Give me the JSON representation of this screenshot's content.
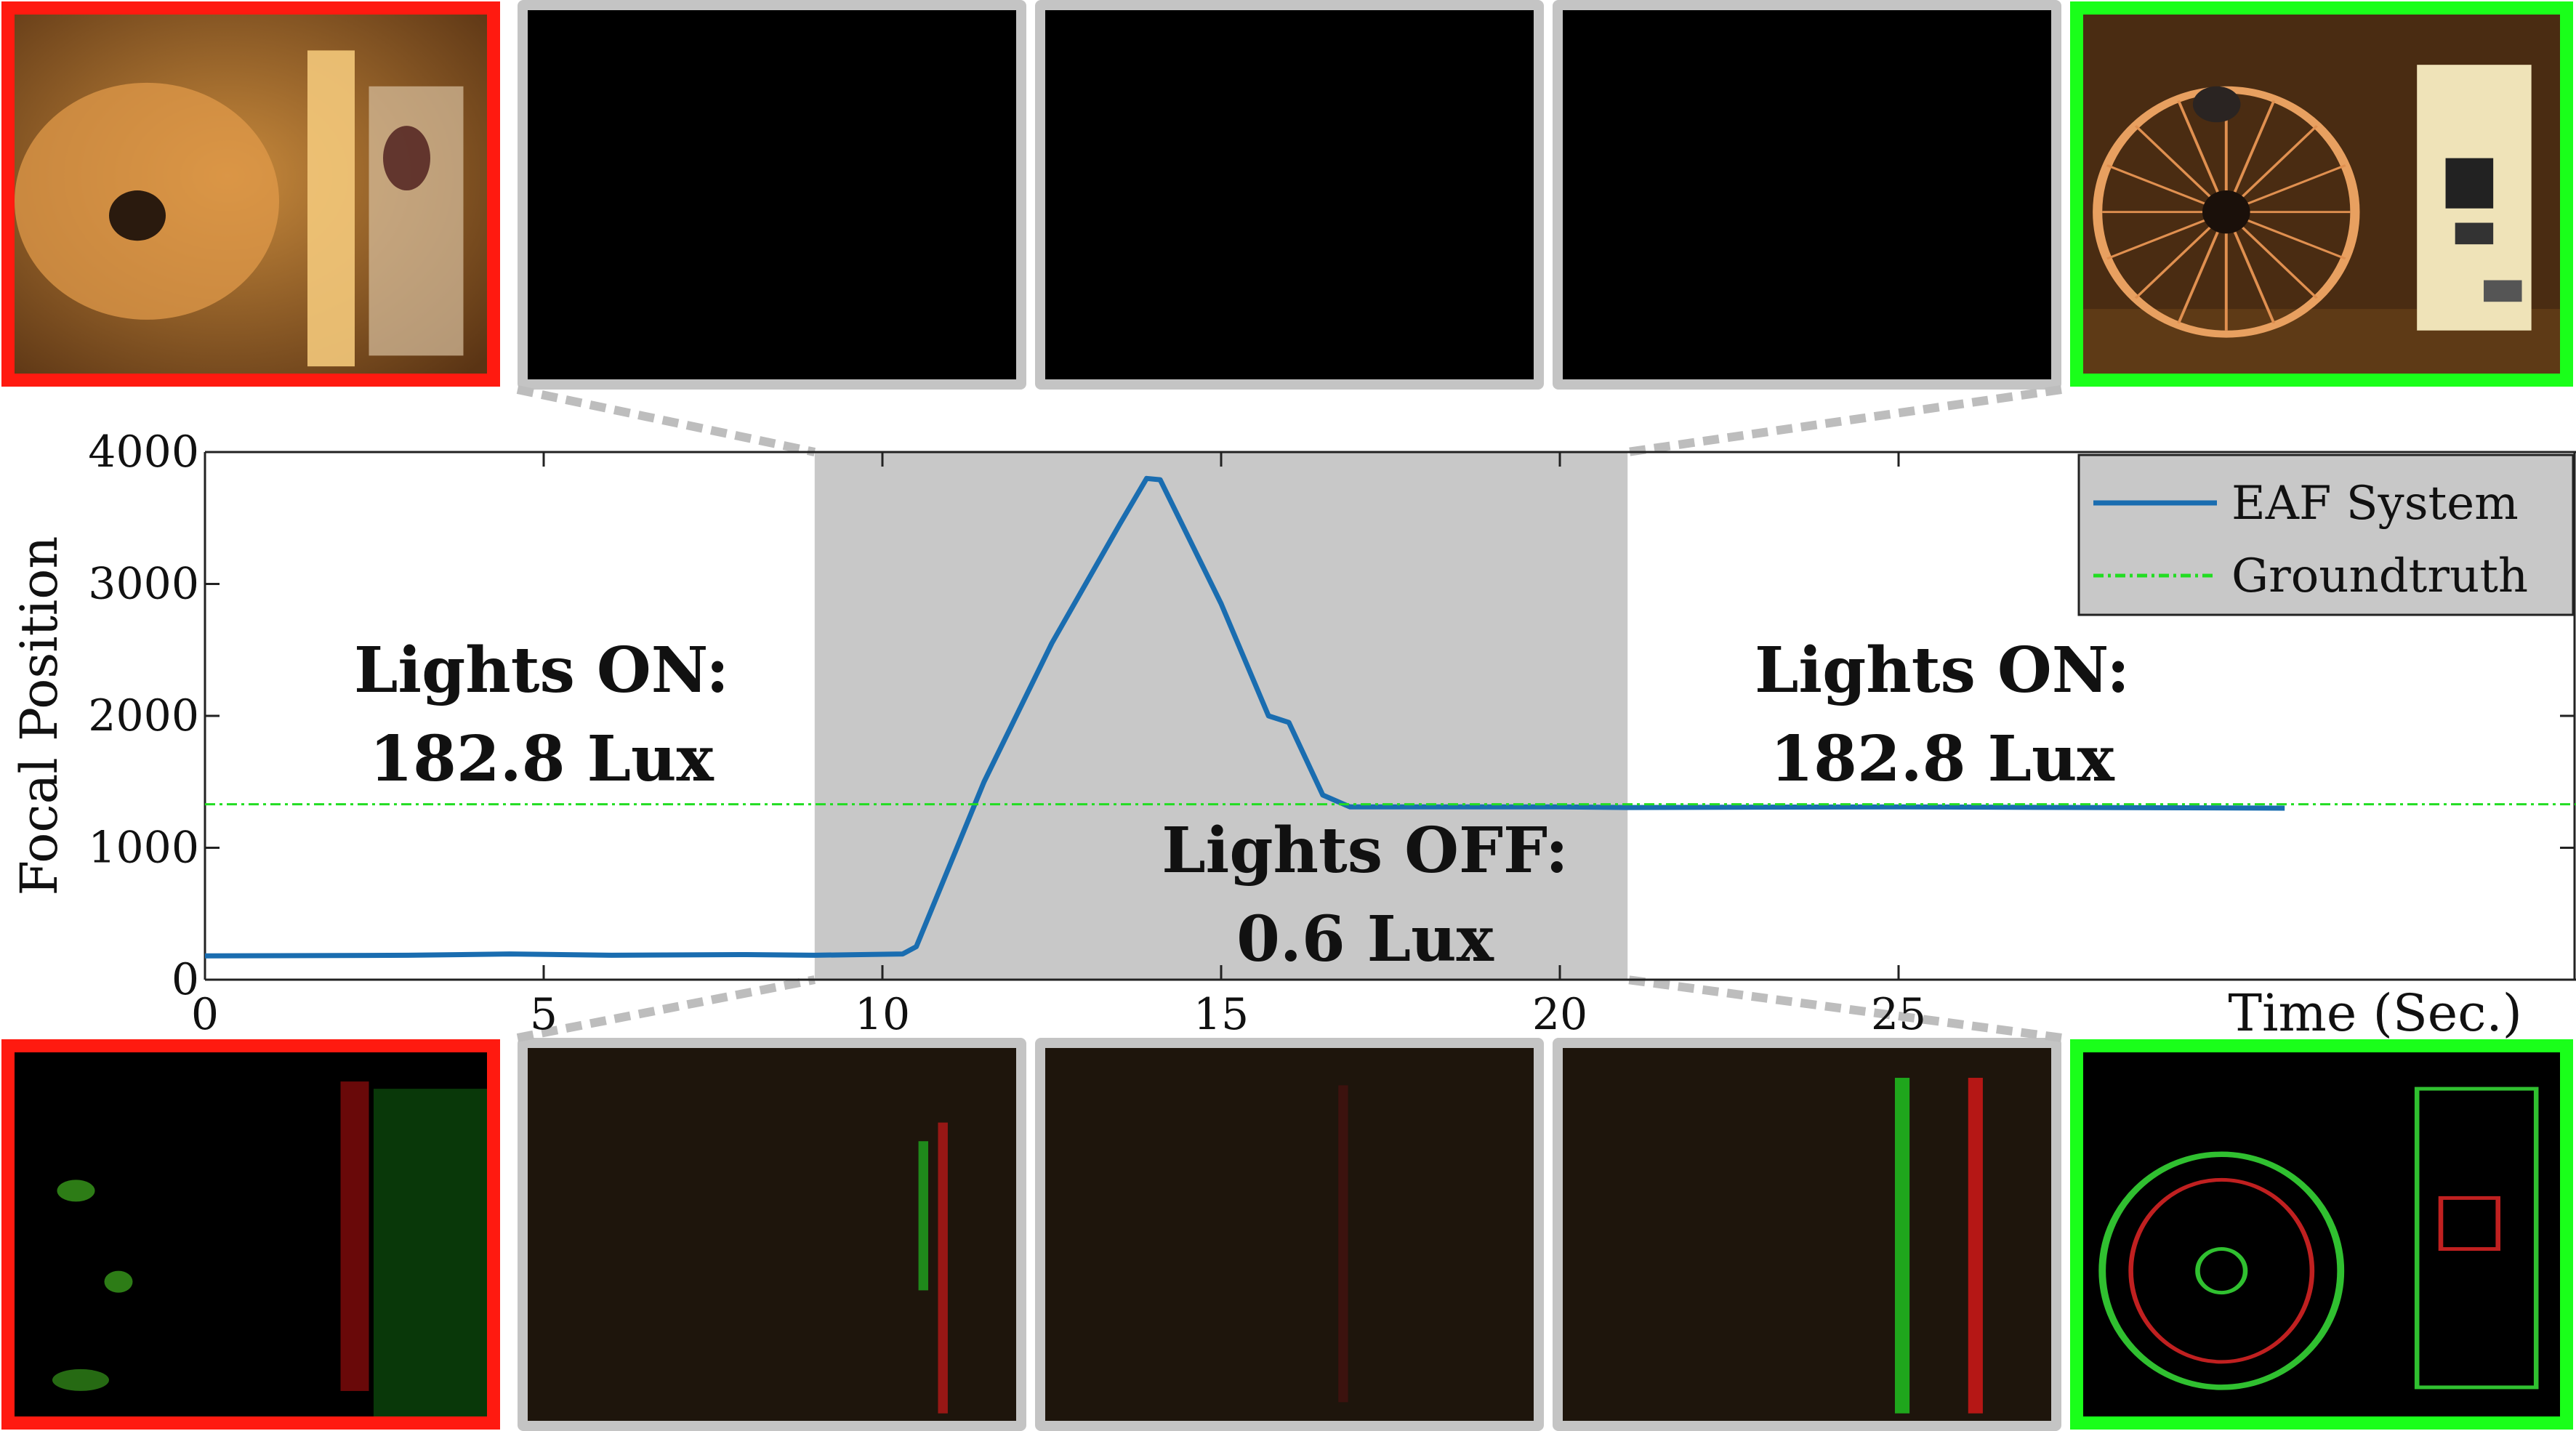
{
  "chart_data": {
    "type": "line",
    "title": "",
    "xlabel": "Time (Sec.)",
    "ylabel": "Focal Position",
    "xlim": [
      0,
      35
    ],
    "ylim": [
      0,
      4000
    ],
    "x_ticks": [
      0,
      5,
      10,
      15,
      20,
      25
    ],
    "y_ticks": [
      0,
      1000,
      2000,
      3000,
      4000
    ],
    "shaded_region": {
      "x_start": 9.0,
      "x_end": 21.0,
      "color": "#c8c8c8"
    },
    "series": [
      {
        "name": "EAF System",
        "style": "solid",
        "color": "#1a6db0",
        "x": [
          0,
          3,
          4.5,
          6,
          8,
          9,
          10.3,
          10.5,
          11.5,
          12.5,
          13.5,
          13.9,
          14.1,
          15,
          15.7,
          16,
          16.5,
          16.9,
          17.5,
          20,
          21,
          25,
          30.7
        ],
        "y": [
          180,
          185,
          195,
          185,
          190,
          185,
          195,
          250,
          1500,
          2550,
          3450,
          3800,
          3790,
          2850,
          2000,
          1950,
          1400,
          1310,
          1310,
          1310,
          1305,
          1310,
          1300
        ]
      },
      {
        "name": "Groundtruth",
        "style": "dash-dot",
        "color": "#22dd22",
        "x": [
          0,
          35
        ],
        "y": [
          1330,
          1330
        ]
      }
    ],
    "legend_position": "top-right",
    "annotations": [
      {
        "lines": [
          "Lights ON:",
          "182.8 Lux"
        ],
        "region": "before"
      },
      {
        "lines": [
          "Lights OFF:",
          "0.6 Lux"
        ],
        "region": "shaded"
      },
      {
        "lines": [
          "Lights ON:",
          "182.8 Lux"
        ],
        "region": "after"
      }
    ]
  },
  "thumbnails": {
    "top": [
      {
        "label": "rgb-frame-blurred",
        "border": "#ff1a10"
      },
      {
        "label": "rgb-frame-dark",
        "border": "#c4c4c4"
      },
      {
        "label": "rgb-frame-dark",
        "border": "#c4c4c4"
      },
      {
        "label": "rgb-frame-dark",
        "border": "#c4c4c4"
      },
      {
        "label": "rgb-frame-focused",
        "border": "#1aff1a"
      }
    ],
    "bottom": [
      {
        "label": "event-frame-blurred",
        "border": "#ff1a10"
      },
      {
        "label": "event-frame-dark",
        "border": "#c4c4c4"
      },
      {
        "label": "event-frame-dark",
        "border": "#c4c4c4"
      },
      {
        "label": "event-frame-dark",
        "border": "#c4c4c4"
      },
      {
        "label": "event-frame-focused",
        "border": "#1aff1a"
      }
    ]
  }
}
